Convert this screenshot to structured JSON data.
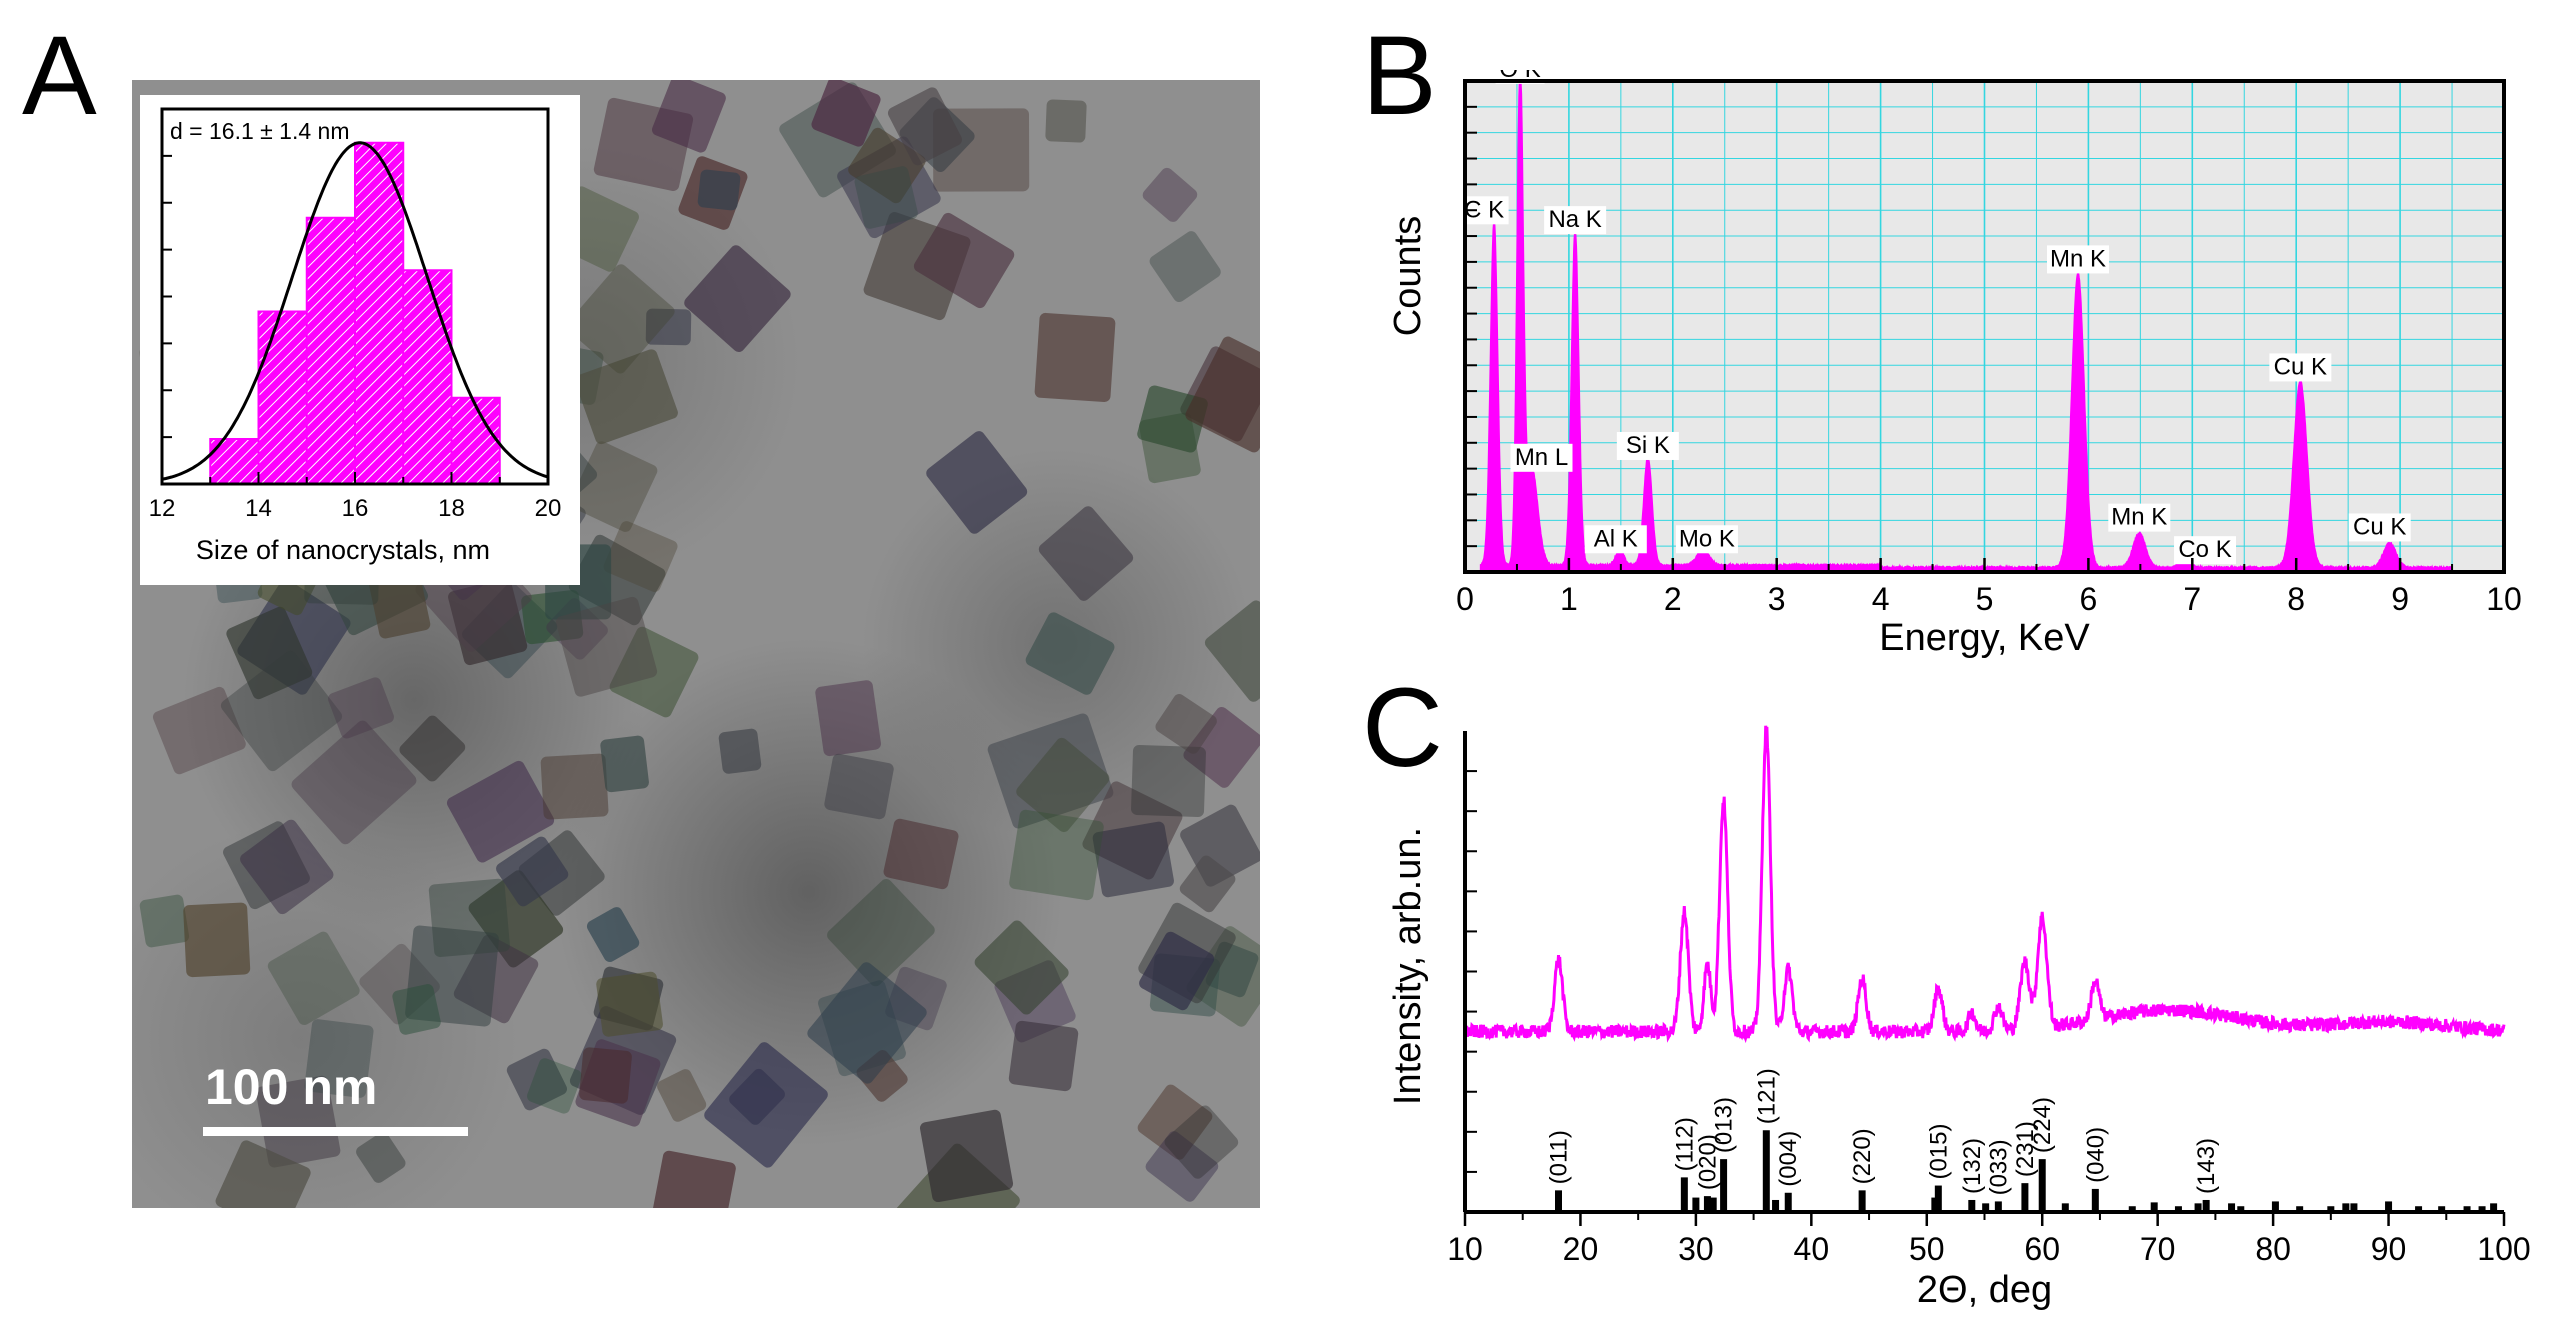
{
  "panels": {
    "a": "A",
    "b": "B",
    "c": "C"
  },
  "tem": {
    "scale_label": "100 nm"
  },
  "colors": {
    "magenta": "#ff00ff",
    "edx_bg": "#e8e8e8",
    "grid": "#33d6e0",
    "black": "#000000"
  },
  "chart_data": [
    {
      "id": "histogram",
      "type": "bar",
      "annotation": "d = 16.1 ± 1.4 nm",
      "xlabel": "Size of nanocrystals, nm",
      "ylabel": "",
      "xlim": [
        12,
        20
      ],
      "ylim": [
        0,
        1
      ],
      "xticks": [
        "12",
        "14",
        "16",
        "18",
        "20"
      ],
      "bins": [
        {
          "x0": 13,
          "x1": 14,
          "value": 0.12
        },
        {
          "x0": 14,
          "x1": 15,
          "value": 0.46
        },
        {
          "x0": 15,
          "x1": 16,
          "value": 0.71
        },
        {
          "x0": 16,
          "x1": 17,
          "value": 0.91
        },
        {
          "x0": 17,
          "x1": 18,
          "value": 0.57
        },
        {
          "x0": 18,
          "x1": 19,
          "value": 0.23
        }
      ],
      "gaussian": {
        "mean": 16.1,
        "sigma": 1.4,
        "peak": 0.91
      }
    },
    {
      "id": "edx",
      "type": "area",
      "title": "",
      "xlabel": "Energy, KeV",
      "ylabel": "Counts",
      "xlim": [
        0,
        10
      ],
      "ylim": [
        0,
        1
      ],
      "xticks": [
        "0",
        "1",
        "2",
        "3",
        "4",
        "5",
        "6",
        "7",
        "8",
        "9",
        "10"
      ],
      "grid": true,
      "baseline": 0.012,
      "peaks": [
        {
          "label": "C K",
          "x": 0.28,
          "y": 0.7,
          "w": 0.035
        },
        {
          "label": "O K",
          "x": 0.53,
          "y": 0.99,
          "w": 0.03
        },
        {
          "label": "Mn L",
          "x": 0.64,
          "y": 0.2,
          "w": 0.06
        },
        {
          "label": "Na K",
          "x": 1.06,
          "y": 0.68,
          "w": 0.035
        },
        {
          "label": "Al K",
          "x": 1.49,
          "y": 0.03,
          "w": 0.04
        },
        {
          "label": "Si K",
          "x": 1.76,
          "y": 0.22,
          "w": 0.04
        },
        {
          "label": "Mo K",
          "x": 2.29,
          "y": 0.03,
          "w": 0.06
        },
        {
          "label": "Mn K",
          "x": 5.9,
          "y": 0.6,
          "w": 0.06
        },
        {
          "label": "Mn K",
          "x": 6.49,
          "y": 0.07,
          "w": 0.06
        },
        {
          "label": "Co K",
          "x": 6.93,
          "y": 0.02,
          "w": 0.05
        },
        {
          "label": "Cu K",
          "x": 8.04,
          "y": 0.38,
          "w": 0.065
        },
        {
          "label": "Cu K",
          "x": 8.9,
          "y": 0.05,
          "w": 0.06
        }
      ]
    },
    {
      "id": "xrd",
      "type": "line",
      "title": "",
      "xlabel": "2Θ, deg",
      "ylabel": "Intensity, arb.un.",
      "xlim": [
        10,
        100
      ],
      "ylim": [
        0,
        1
      ],
      "xticks": [
        "10",
        "20",
        "30",
        "40",
        "50",
        "60",
        "70",
        "80",
        "90",
        "100"
      ],
      "baseline": 0.375,
      "broad_humps": [
        {
          "x": 71,
          "w": 6,
          "y": 0.045
        },
        {
          "x": 90,
          "w": 5,
          "y": 0.02
        }
      ],
      "peaks": [
        {
          "x": 18.1,
          "y": 0.15,
          "w": 0.35
        },
        {
          "x": 29.0,
          "y": 0.25,
          "w": 0.35
        },
        {
          "x": 31.0,
          "y": 0.14,
          "w": 0.3
        },
        {
          "x": 32.4,
          "y": 0.48,
          "w": 0.35
        },
        {
          "x": 36.1,
          "y": 0.63,
          "w": 0.35
        },
        {
          "x": 38.0,
          "y": 0.13,
          "w": 0.35
        },
        {
          "x": 44.4,
          "y": 0.11,
          "w": 0.35
        },
        {
          "x": 51.0,
          "y": 0.09,
          "w": 0.35
        },
        {
          "x": 53.9,
          "y": 0.04,
          "w": 0.3
        },
        {
          "x": 56.2,
          "y": 0.05,
          "w": 0.35
        },
        {
          "x": 58.5,
          "y": 0.14,
          "w": 0.4
        },
        {
          "x": 60.0,
          "y": 0.23,
          "w": 0.4
        },
        {
          "x": 64.6,
          "y": 0.08,
          "w": 0.35
        }
      ],
      "reference": [
        {
          "x": 18.1,
          "h": 0.045,
          "label": "(011)"
        },
        {
          "x": 29.0,
          "h": 0.072,
          "label": "(112)"
        },
        {
          "x": 30.0,
          "h": 0.03
        },
        {
          "x": 31.0,
          "h": 0.033,
          "label": "(020)"
        },
        {
          "x": 31.5,
          "h": 0.03
        },
        {
          "x": 32.4,
          "h": 0.11,
          "label": "(013)"
        },
        {
          "x": 36.1,
          "h": 0.17,
          "label": "(121)"
        },
        {
          "x": 36.9,
          "h": 0.025
        },
        {
          "x": 38.0,
          "h": 0.04,
          "label": "(004)"
        },
        {
          "x": 44.4,
          "h": 0.045,
          "label": "(220)"
        },
        {
          "x": 50.7,
          "h": 0.03
        },
        {
          "x": 51.0,
          "h": 0.055,
          "label": "(015)"
        },
        {
          "x": 53.9,
          "h": 0.025,
          "label": "(132)"
        },
        {
          "x": 55.1,
          "h": 0.018
        },
        {
          "x": 56.2,
          "h": 0.022,
          "label": "(033)"
        },
        {
          "x": 58.5,
          "h": 0.06,
          "label": "(231)"
        },
        {
          "x": 60.0,
          "h": 0.11,
          "label": "(224)"
        },
        {
          "x": 62.0,
          "h": 0.018
        },
        {
          "x": 64.6,
          "h": 0.048,
          "label": "(040)"
        },
        {
          "x": 67.8,
          "h": 0.012
        },
        {
          "x": 69.7,
          "h": 0.02
        },
        {
          "x": 71.8,
          "h": 0.012
        },
        {
          "x": 73.5,
          "h": 0.018
        },
        {
          "x": 74.2,
          "h": 0.025,
          "label": "(143)"
        },
        {
          "x": 76.4,
          "h": 0.018
        },
        {
          "x": 77.2,
          "h": 0.012
        },
        {
          "x": 80.2,
          "h": 0.022
        },
        {
          "x": 82.3,
          "h": 0.012
        },
        {
          "x": 85.0,
          "h": 0.012
        },
        {
          "x": 86.3,
          "h": 0.018
        },
        {
          "x": 87.0,
          "h": 0.018
        },
        {
          "x": 90.0,
          "h": 0.022
        },
        {
          "x": 92.6,
          "h": 0.012
        },
        {
          "x": 94.6,
          "h": 0.012
        },
        {
          "x": 96.8,
          "h": 0.012
        },
        {
          "x": 98.1,
          "h": 0.012
        },
        {
          "x": 99.1,
          "h": 0.018
        }
      ]
    }
  ]
}
